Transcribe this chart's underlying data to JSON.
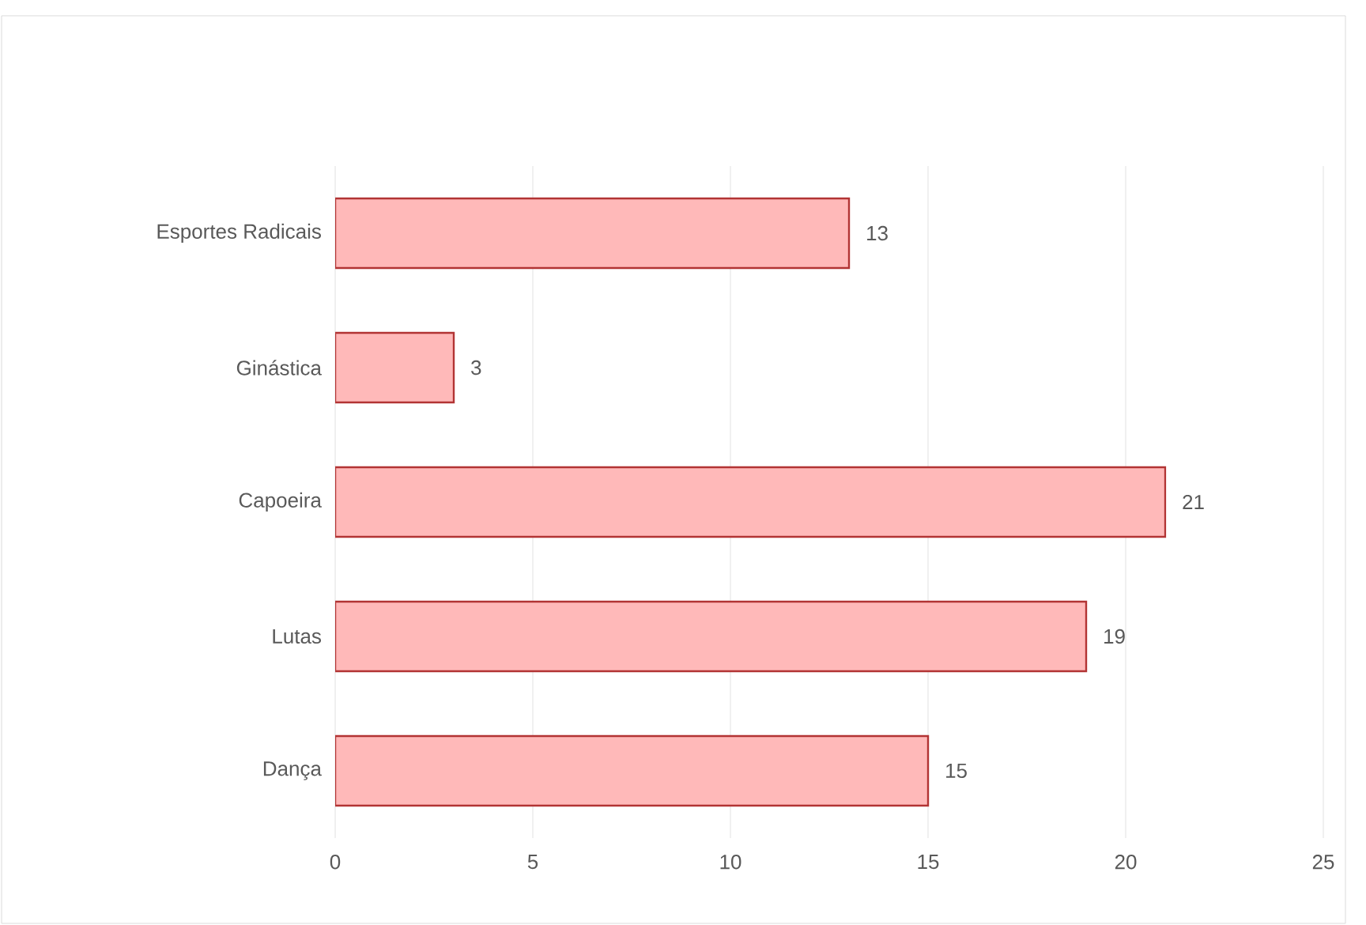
{
  "chart_data": {
    "type": "bar",
    "orientation": "horizontal",
    "categories": [
      "Esportes Radicais",
      "Ginástica",
      "Capoeira",
      "Lutas",
      "Dança"
    ],
    "values": [
      13,
      3,
      21,
      19,
      15
    ],
    "color": "#ffb9b9",
    "xlim": [
      0,
      25
    ],
    "xticks": [
      0,
      5,
      10,
      15,
      20,
      25
    ],
    "grid": "x",
    "data_labels": true
  }
}
